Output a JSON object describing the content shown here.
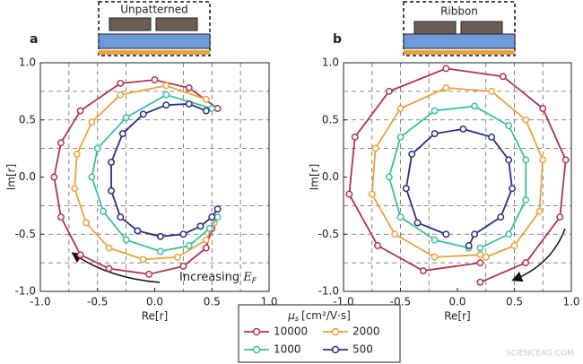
{
  "chart_data": [
    {
      "type": "line",
      "panel": "a",
      "inset_label": "Unpatterned",
      "xlabel": "Re[r]",
      "ylabel": "Im[r]",
      "xlim": [
        -1,
        1
      ],
      "ylim": [
        -1,
        1
      ],
      "xticks": [
        {
          "value": -1,
          "label": "-1.0"
        },
        {
          "value": -0.5,
          "label": "-0.5"
        },
        {
          "value": 0,
          "label": "0.0"
        },
        {
          "value": 0.5,
          "label": "0.5"
        },
        {
          "value": 1,
          "label": "1.0"
        }
      ],
      "yticks": [
        {
          "value": -1,
          "label": "-1.0"
        },
        {
          "value": -0.5,
          "label": "-0.5"
        },
        {
          "value": 0,
          "label": "0.0"
        },
        {
          "value": 0.5,
          "label": "0.5"
        },
        {
          "value": 1,
          "label": "1.0"
        }
      ],
      "grid_values": [
        -0.75,
        -0.5,
        -0.25,
        0.25,
        0.5,
        0.75
      ],
      "annotation": "Increasing",
      "annotation_symbol": "E",
      "annotation_subscript": "F",
      "series": [
        {
          "name": "10000",
          "color": "#b0334f",
          "x": [
            0.55,
            0.3,
            0.0,
            -0.3,
            -0.65,
            -0.82,
            -0.88,
            -0.82,
            -0.65,
            -0.4,
            -0.05,
            0.25,
            0.45,
            0.5
          ],
          "values": [
            0.6,
            0.78,
            0.85,
            0.82,
            0.58,
            0.3,
            0,
            -0.35,
            -0.68,
            -0.8,
            -0.85,
            -0.78,
            -0.62,
            -0.45
          ]
        },
        {
          "name": "2000",
          "color": "#e9a23b",
          "x": [
            0.45,
            0.1,
            -0.3,
            -0.55,
            -0.68,
            -0.7,
            -0.6,
            -0.4,
            -0.1,
            0.2,
            0.45,
            0.52
          ],
          "values": [
            0.68,
            0.8,
            0.72,
            0.48,
            0.2,
            -0.1,
            -0.4,
            -0.62,
            -0.72,
            -0.7,
            -0.55,
            -0.4
          ]
        },
        {
          "name": "1000",
          "color": "#3bbf9f",
          "x": [
            0.5,
            0.1,
            -0.25,
            -0.5,
            -0.55,
            -0.45,
            -0.25,
            0.05,
            0.3,
            0.48,
            0.55
          ],
          "values": [
            0.6,
            0.72,
            0.52,
            0.25,
            0,
            -0.3,
            -0.55,
            -0.65,
            -0.6,
            -0.45,
            -0.35
          ]
        },
        {
          "name": "500",
          "color": "#2c3082",
          "x": [
            0.45,
            0.3,
            0.1,
            -0.1,
            -0.28,
            -0.38,
            -0.38,
            -0.3,
            -0.15,
            0.05,
            0.25,
            0.4,
            0.5,
            0.55
          ],
          "values": [
            0.58,
            0.64,
            0.63,
            0.55,
            0.38,
            0.13,
            -0.12,
            -0.35,
            -0.47,
            -0.52,
            -0.5,
            -0.43,
            -0.35,
            -0.28
          ]
        }
      ]
    },
    {
      "type": "line",
      "panel": "b",
      "inset_label": "Ribbon",
      "xlabel": "Re[r]",
      "ylabel": "Im[r]",
      "xlim": [
        -1,
        1
      ],
      "ylim": [
        -1,
        1
      ],
      "xticks": [
        {
          "value": -1,
          "label": "-1.0"
        },
        {
          "value": -0.5,
          "label": "-0.5"
        },
        {
          "value": 0,
          "label": "0.0"
        },
        {
          "value": 0.5,
          "label": "0.5"
        },
        {
          "value": 1,
          "label": "1.0"
        }
      ],
      "yticks": [
        {
          "value": -1,
          "label": "-1.0"
        },
        {
          "value": -0.5,
          "label": "-0.5"
        },
        {
          "value": 0,
          "label": "0.0"
        },
        {
          "value": 0.5,
          "label": "0.5"
        },
        {
          "value": 1,
          "label": "1.0"
        }
      ],
      "grid_values": [
        -0.75,
        -0.5,
        -0.25,
        0.25,
        0.5,
        0.75
      ],
      "series": [
        {
          "name": "10000",
          "color": "#b0334f",
          "x": [
            0.2,
            -0.3,
            -0.7,
            -0.95,
            -0.9,
            -0.6,
            -0.1,
            0.4,
            0.75,
            0.95,
            0.9,
            0.6,
            0.2
          ],
          "values": [
            -0.75,
            -0.82,
            -0.6,
            -0.15,
            0.35,
            0.75,
            0.95,
            0.88,
            0.6,
            0.15,
            -0.35,
            -0.75,
            -0.92
          ]
        },
        {
          "name": "2000",
          "color": "#e9a23b",
          "x": [
            0.2,
            -0.2,
            -0.55,
            -0.75,
            -0.72,
            -0.5,
            -0.1,
            0.3,
            0.6,
            0.75,
            0.72,
            0.5,
            0.25
          ],
          "values": [
            -0.68,
            -0.7,
            -0.5,
            -0.15,
            0.25,
            0.6,
            0.78,
            0.75,
            0.5,
            0.15,
            -0.3,
            -0.6,
            -0.7
          ]
        },
        {
          "name": "1000",
          "color": "#3bbf9f",
          "x": [
            0.1,
            -0.2,
            -0.5,
            -0.6,
            -0.5,
            -0.2,
            0.15,
            0.45,
            0.6,
            0.6,
            0.45,
            0.2
          ],
          "values": [
            -0.62,
            -0.55,
            -0.35,
            0,
            0.35,
            0.58,
            0.62,
            0.45,
            0.15,
            -0.2,
            -0.5,
            -0.62
          ]
        },
        {
          "name": "500",
          "color": "#2c3082",
          "x": [
            -0.1,
            -0.35,
            -0.45,
            -0.4,
            -0.2,
            0.05,
            0.3,
            0.45,
            0.48,
            0.38,
            0.15,
            0.1
          ],
          "values": [
            -0.5,
            -0.4,
            -0.1,
            0.2,
            0.38,
            0.42,
            0.35,
            0.15,
            -0.1,
            -0.35,
            -0.5,
            -0.6
          ]
        }
      ]
    }
  ],
  "legend": {
    "symbol": "μ",
    "subscript": "s",
    "title": "[cm²/V·s]"
  },
  "watermark": "SCIENCEAG.COM"
}
